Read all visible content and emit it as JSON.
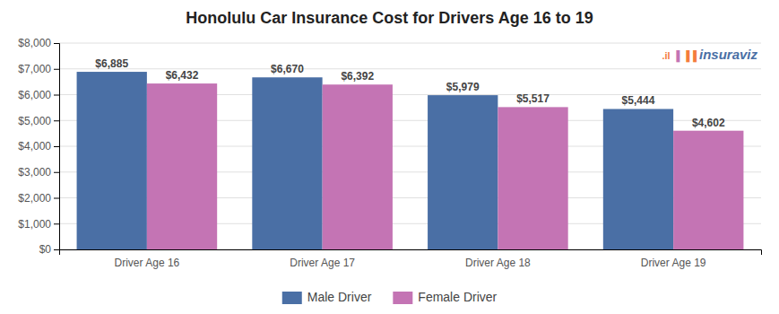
{
  "chart_data": {
    "type": "bar",
    "title": "Honolulu Car Insurance Cost for Drivers Age 16 to 19",
    "categories": [
      "Driver Age 16",
      "Driver Age 17",
      "Driver Age 18",
      "Driver Age 19"
    ],
    "series": [
      {
        "name": "Male Driver",
        "color": "#4a6fa5",
        "values": [
          6885,
          6670,
          5979,
          5444
        ],
        "value_labels": [
          "$6,885",
          "$6,670",
          "$5,979",
          "$5,444"
        ]
      },
      {
        "name": "Female Driver",
        "color": "#c474b4",
        "values": [
          6432,
          6392,
          5517,
          4602
        ],
        "value_labels": [
          "$6,432",
          "$6,392",
          "$5,517",
          "$4,602"
        ]
      }
    ],
    "ylim": [
      0,
      8000
    ],
    "yticks": [
      {
        "value": 0,
        "label": "$0"
      },
      {
        "value": 1000,
        "label": "$1,000"
      },
      {
        "value": 2000,
        "label": "$2,000"
      },
      {
        "value": 3000,
        "label": "$3,000"
      },
      {
        "value": 4000,
        "label": "$4,000"
      },
      {
        "value": 5000,
        "label": "$5,000"
      },
      {
        "value": 6000,
        "label": "$6,000"
      },
      {
        "value": 7000,
        "label": "$7,000"
      },
      {
        "value": 8000,
        "label": "$8,000"
      }
    ],
    "grid": true,
    "legend": "bottom",
    "data_labels": true,
    "annotations": [
      ".il",
      "▐",
      "▐▐",
      "insuraviz"
    ]
  }
}
